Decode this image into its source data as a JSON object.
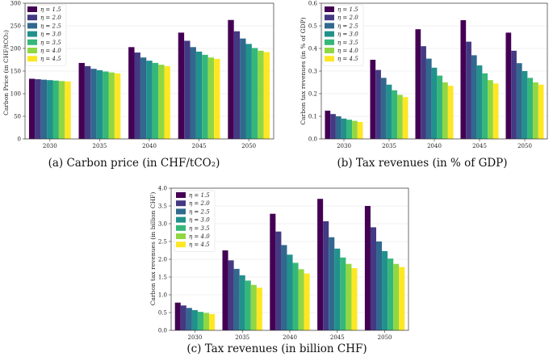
{
  "chart_data": [
    {
      "type": "bar",
      "panel": "a",
      "caption": "(a) Carbon price (in CHF/tCO₂)",
      "ylabel": "Carbon Price (in CHF/tCO₂)",
      "categories": [
        "2030",
        "2035",
        "2040",
        "2045",
        "2050"
      ],
      "ylim": [
        0,
        300
      ],
      "yticks": [
        "0",
        "50",
        "100",
        "150",
        "200",
        "250",
        "300"
      ],
      "grid": true,
      "legend": "top-left",
      "series": [
        {
          "name": "η = 1.5",
          "values": [
            133,
            168,
            203,
            235,
            263
          ]
        },
        {
          "name": "η = 2.0",
          "values": [
            132,
            161,
            191,
            217,
            238
          ]
        },
        {
          "name": "η = 2.5",
          "values": [
            131,
            155,
            180,
            203,
            222
          ]
        },
        {
          "name": "η = 3.0",
          "values": [
            130,
            152,
            173,
            193,
            210
          ]
        },
        {
          "name": "η = 3.5",
          "values": [
            129,
            149,
            168,
            186,
            201
          ]
        },
        {
          "name": "η = 4.0",
          "values": [
            128,
            147,
            164,
            180,
            195
          ]
        },
        {
          "name": "η = 4.5",
          "values": [
            127,
            145,
            161,
            177,
            192
          ]
        }
      ]
    },
    {
      "type": "bar",
      "panel": "b",
      "caption": "(b) Tax revenues (in % of GDP)",
      "ylabel": "Carbon tax revenues (in % of GDP)",
      "categories": [
        "2030",
        "2035",
        "2040",
        "2045",
        "2050"
      ],
      "ylim": [
        0,
        0.6
      ],
      "yticks": [
        "0.0",
        "0.1",
        "0.2",
        "0.3",
        "0.4",
        "0.5",
        "0.6"
      ],
      "grid": true,
      "legend": "top-left",
      "series": [
        {
          "name": "η = 1.5",
          "values": [
            0.125,
            0.35,
            0.485,
            0.525,
            0.47
          ]
        },
        {
          "name": "η = 2.0",
          "values": [
            0.11,
            0.305,
            0.41,
            0.43,
            0.39
          ]
        },
        {
          "name": "η = 2.5",
          "values": [
            0.1,
            0.27,
            0.355,
            0.37,
            0.335
          ]
        },
        {
          "name": "η = 3.0",
          "values": [
            0.09,
            0.24,
            0.315,
            0.325,
            0.3
          ]
        },
        {
          "name": "η = 3.5",
          "values": [
            0.085,
            0.215,
            0.28,
            0.29,
            0.27
          ]
        },
        {
          "name": "η = 4.0",
          "values": [
            0.08,
            0.195,
            0.25,
            0.26,
            0.25
          ]
        },
        {
          "name": "η = 4.5",
          "values": [
            0.075,
            0.185,
            0.235,
            0.245,
            0.24
          ]
        }
      ]
    },
    {
      "type": "bar",
      "panel": "c",
      "caption": "(c) Tax revenues (in billion CHF)",
      "ylabel": "Carbon tax revenues (in billion CHF)",
      "categories": [
        "2030",
        "2035",
        "2040",
        "2045",
        "2050"
      ],
      "ylim": [
        0,
        4.0
      ],
      "yticks": [
        "0.0",
        "0.5",
        "1.0",
        "1.5",
        "2.0",
        "2.5",
        "3.0",
        "3.5",
        "4.0"
      ],
      "grid": true,
      "legend": "top-left",
      "series": [
        {
          "name": "η = 1.5",
          "values": [
            0.78,
            2.25,
            3.28,
            3.7,
            3.5
          ]
        },
        {
          "name": "η = 2.0",
          "values": [
            0.7,
            1.97,
            2.78,
            3.07,
            2.9
          ]
        },
        {
          "name": "η = 2.5",
          "values": [
            0.63,
            1.73,
            2.4,
            2.62,
            2.5
          ]
        },
        {
          "name": "η = 3.0",
          "values": [
            0.57,
            1.55,
            2.13,
            2.3,
            2.23
          ]
        },
        {
          "name": "η = 3.5",
          "values": [
            0.52,
            1.4,
            1.9,
            2.05,
            2.02
          ]
        },
        {
          "name": "η = 4.0",
          "values": [
            0.49,
            1.28,
            1.72,
            1.87,
            1.87
          ]
        },
        {
          "name": "η = 4.5",
          "values": [
            0.46,
            1.2,
            1.6,
            1.75,
            1.78
          ]
        }
      ]
    }
  ],
  "colors": [
    "#440154",
    "#443983",
    "#31688e",
    "#21918c",
    "#35b779",
    "#90d743",
    "#fde725"
  ]
}
